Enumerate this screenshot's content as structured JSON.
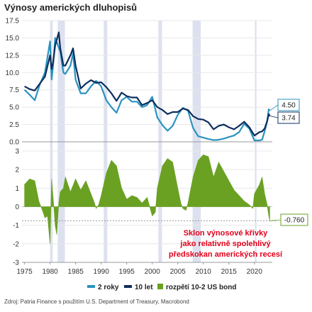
{
  "title": "Výnosy amerických dluhopisů",
  "source": "Zdroj: Patria Finance s použitím U.S. Department of Treasury, Macrobond",
  "annotation": [
    "Sklon výnosové křivky",
    "jako relativně spolehlivý",
    "předskokan amerických recesí"
  ],
  "colors": {
    "yield_2y": "#2a93bf",
    "yield_10y": "#0d2d5e",
    "spread": "#6aa123",
    "recession": "#dde1ef",
    "annotation": "#e3001b"
  },
  "chart_data": [
    {
      "type": "line",
      "xlabel": "",
      "ylabel": "",
      "xlim": [
        1974.5,
        2023.5
      ],
      "ylim": [
        0,
        17.5
      ],
      "yticks": [
        "0.0",
        "2.5",
        "5.0",
        "7.5",
        "10.0",
        "12.5",
        "15.0",
        "17.5"
      ],
      "recessions": [
        [
          1980.0,
          1980.5
        ],
        [
          1981.5,
          1982.9
        ],
        [
          1990.5,
          1991.2
        ],
        [
          2001.2,
          2001.9
        ],
        [
          2007.9,
          2009.5
        ],
        [
          2020.1,
          2020.4
        ]
      ],
      "series": [
        {
          "name": "2 roky",
          "color": "#2a93bf",
          "x": [
            1975,
            1976,
            1977,
            1978,
            1979,
            1980,
            1980.3,
            1980.6,
            1981,
            1981.5,
            1982,
            1982.6,
            1983,
            1984,
            1984.5,
            1985,
            1986,
            1987,
            1988,
            1989,
            1990,
            1991,
            1992,
            1993,
            1994,
            1995,
            1996,
            1997,
            1998,
            1999,
            2000,
            2001,
            2002,
            2003,
            2004,
            2005,
            2006,
            2007,
            2008,
            2009,
            2010,
            2011,
            2012,
            2013,
            2014,
            2015,
            2016,
            2017,
            2018,
            2019,
            2020,
            2021,
            2021.5,
            2022,
            2022.5,
            2022.8,
            2023
          ],
          "values": [
            7.5,
            6.8,
            6.0,
            8.3,
            10.0,
            14.5,
            9.0,
            11.0,
            15.0,
            14.0,
            13.0,
            10.0,
            9.8,
            11.0,
            12.8,
            9.0,
            7.0,
            7.0,
            8.0,
            8.8,
            8.0,
            6.0,
            5.0,
            4.2,
            6.0,
            6.5,
            5.8,
            5.8,
            5.0,
            5.3,
            6.5,
            3.5,
            2.4,
            1.6,
            2.3,
            3.9,
            4.9,
            4.5,
            2.0,
            0.8,
            0.6,
            0.4,
            0.25,
            0.3,
            0.45,
            0.7,
            0.9,
            1.4,
            2.6,
            1.9,
            0.2,
            0.2,
            0.3,
            1.5,
            3.0,
            4.7,
            4.5
          ]
        },
        {
          "name": "10 let",
          "color": "#0d2d5e",
          "x": [
            1975,
            1976,
            1977,
            1978,
            1979,
            1980,
            1980.3,
            1980.6,
            1981,
            1981.7,
            1982,
            1982.6,
            1983,
            1984,
            1984.5,
            1985,
            1986,
            1987,
            1988,
            1989,
            1990,
            1991,
            1992,
            1993,
            1994,
            1995,
            1996,
            1997,
            1998,
            1999,
            2000,
            2001,
            2002,
            2003,
            2004,
            2005,
            2006,
            2007,
            2008,
            2009,
            2010,
            2011,
            2012,
            2013,
            2014,
            2015,
            2016,
            2017,
            2018,
            2019,
            2020,
            2021,
            2021.5,
            2022,
            2022.5,
            2022.8,
            2023
          ],
          "values": [
            8.0,
            7.6,
            7.4,
            8.4,
            9.4,
            12.5,
            10.5,
            11.5,
            13.9,
            15.8,
            13.5,
            11.0,
            11.0,
            12.5,
            13.5,
            11.0,
            7.7,
            8.4,
            8.9,
            8.5,
            8.6,
            7.9,
            7.0,
            5.9,
            7.1,
            6.6,
            6.4,
            6.4,
            5.3,
            5.6,
            6.0,
            5.0,
            4.6,
            4.0,
            4.3,
            4.3,
            4.8,
            4.6,
            3.7,
            3.3,
            3.2,
            2.8,
            1.8,
            2.3,
            2.5,
            2.1,
            1.8,
            2.3,
            2.9,
            2.1,
            0.9,
            1.4,
            1.5,
            1.9,
            3.0,
            4.0,
            3.74
          ]
        }
      ],
      "end_labels": [
        "4.50",
        "3.74"
      ]
    },
    {
      "type": "area",
      "ylim": [
        -3,
        3
      ],
      "yticks": [
        "-3",
        "-2",
        "-1",
        "0",
        "1",
        "2",
        "3"
      ],
      "xticks": [
        "1975",
        "1980",
        "1985",
        "1990",
        "1995",
        "2000",
        "2005",
        "2010",
        "2015",
        "2020"
      ],
      "series": [
        {
          "name": "rozpětí 10-2 US bond",
          "color": "#6aa123",
          "x": [
            1975,
            1976,
            1977,
            1977.8,
            1978.5,
            1979,
            1979.5,
            1980,
            1980.3,
            1980.6,
            1981,
            1981.3,
            1981.7,
            1982,
            1982.6,
            1983,
            1984,
            1985,
            1986,
            1987,
            1988,
            1988.7,
            1989,
            1989.5,
            1990,
            1991,
            1992,
            1993,
            1994,
            1995,
            1996,
            1997,
            1998,
            1999,
            2000,
            2000.6,
            2001,
            2002,
            2003,
            2004,
            2005,
            2005.6,
            2006,
            2006.6,
            2007,
            2008,
            2009,
            2010,
            2011,
            2012,
            2013,
            2014,
            2015,
            2016,
            2017,
            2018,
            2019,
            2019.7,
            2020,
            2021,
            2021.5,
            2022,
            2022.5,
            2022.8,
            2023
          ],
          "values": [
            1.2,
            1.5,
            1.4,
            0.3,
            -0.2,
            -0.6,
            -0.5,
            -2.0,
            1.5,
            0.5,
            -1.0,
            -1.5,
            0.2,
            0.8,
            1.0,
            1.6,
            0.8,
            1.5,
            0.9,
            1.4,
            0.7,
            0.2,
            -0.1,
            0.1,
            0.6,
            1.8,
            2.5,
            2.2,
            1.0,
            0.4,
            0.6,
            0.5,
            0.2,
            0.5,
            -0.5,
            -0.3,
            1.0,
            2.2,
            2.6,
            2.4,
            1.0,
            0.2,
            -0.1,
            -0.2,
            0.2,
            1.6,
            2.5,
            2.8,
            2.7,
            1.6,
            2.4,
            1.9,
            1.4,
            0.9,
            0.6,
            0.3,
            0.1,
            -0.1,
            0.7,
            1.2,
            1.6,
            0.7,
            0.1,
            -0.5,
            -0.76
          ]
        }
      ],
      "reference_line": -0.76,
      "reference_label": "-0.760"
    }
  ],
  "legend": [
    "2 roky",
    "10 let",
    "rozpětí 10-2 US bond"
  ]
}
